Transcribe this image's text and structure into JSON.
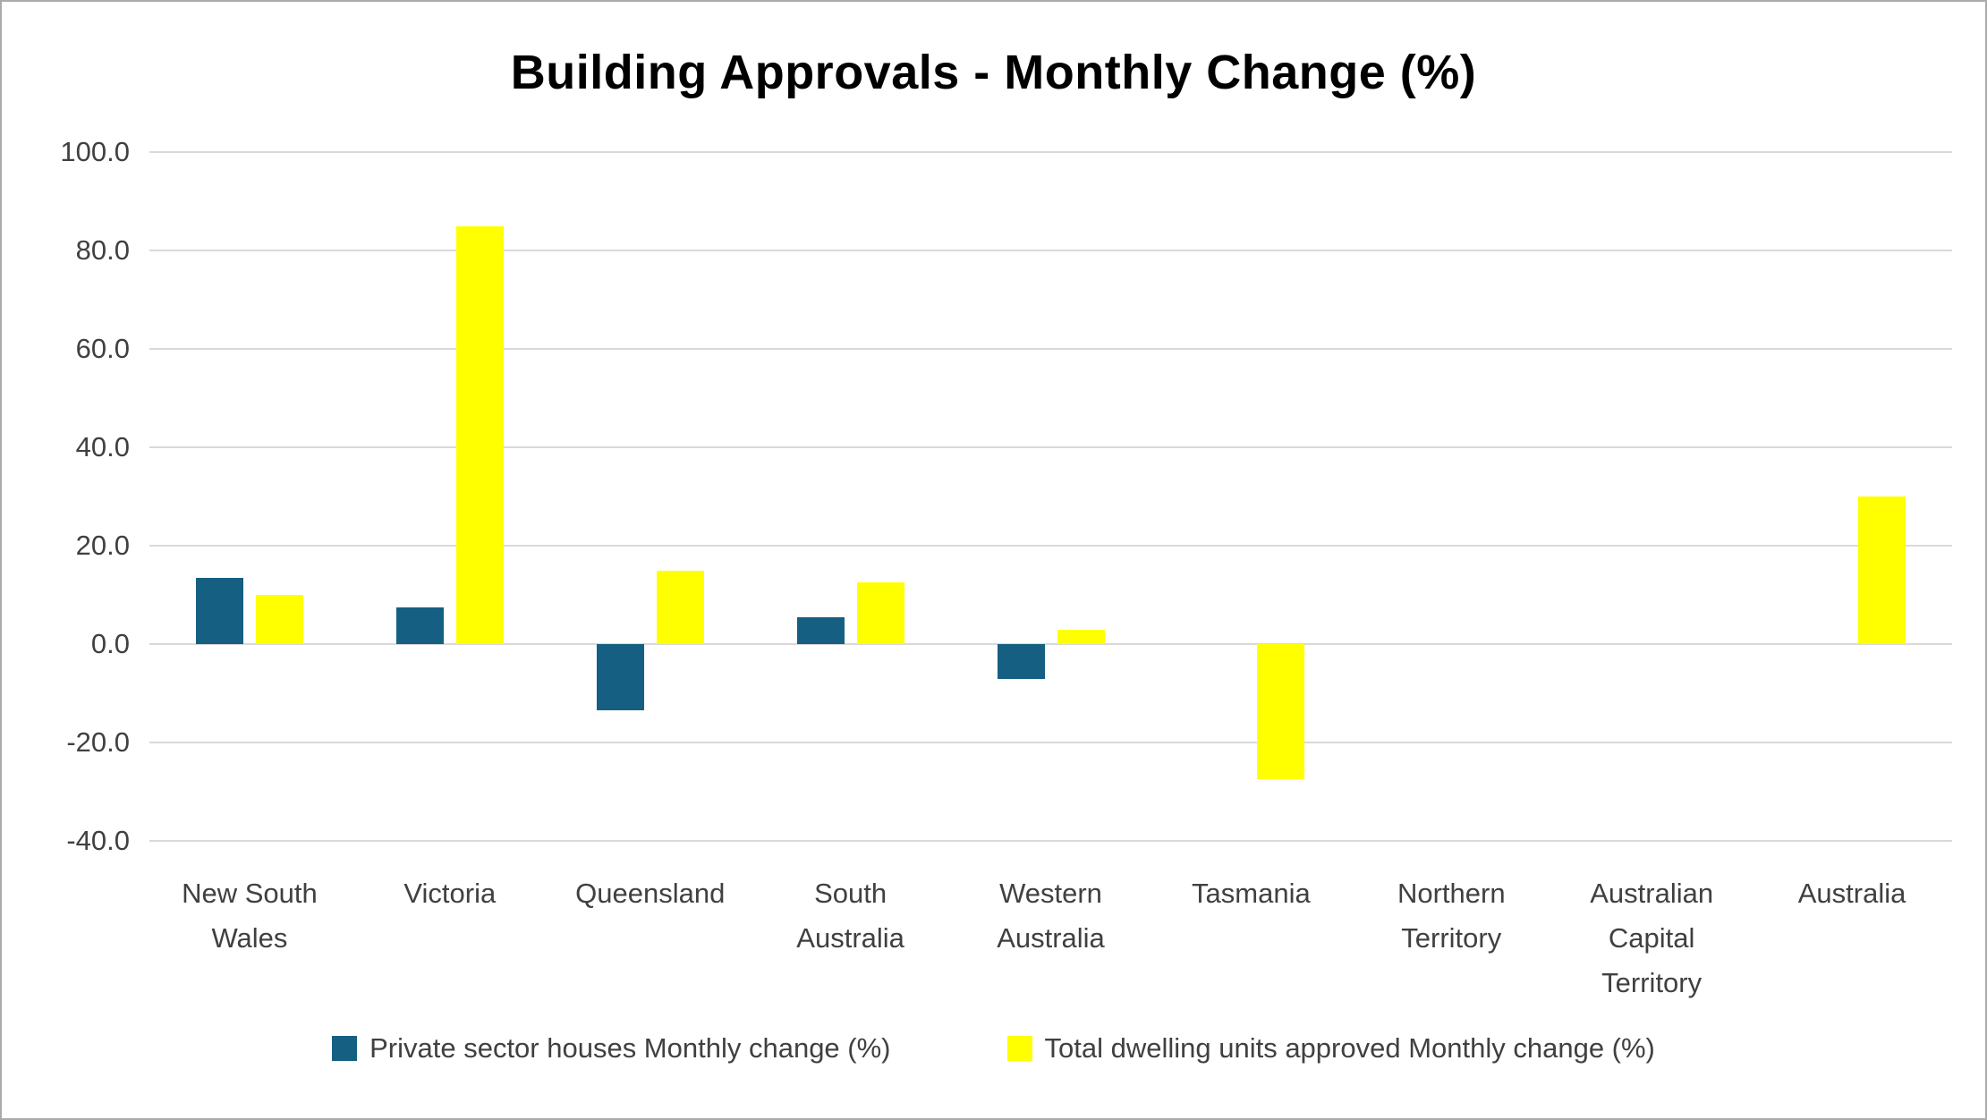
{
  "chart_data": {
    "type": "bar",
    "title": "Building Approvals - Monthly Change (%)",
    "categories": [
      "New South Wales",
      "Victoria",
      "Queensland",
      "South Australia",
      "Western Australia",
      "Tasmania",
      "Northern Territory",
      "Australian Capital Territory",
      "Australia"
    ],
    "series": [
      {
        "name": "Private sector houses Monthly change (%)",
        "color": "#156082",
        "values": [
          13.5,
          7.5,
          -13.5,
          5.5,
          -7.0,
          0,
          0,
          0,
          0
        ]
      },
      {
        "name": "Total dwelling units approved Monthly change (%)",
        "color": "#ffff00",
        "values": [
          10.0,
          85.0,
          15.0,
          12.5,
          3.0,
          -27.5,
          0,
          0,
          30.0
        ]
      }
    ],
    "ylim": [
      -40,
      100
    ],
    "yticks": [
      100,
      80,
      60,
      40,
      20,
      0,
      -20,
      -40
    ],
    "ytick_labels": [
      "100.0",
      "80.0",
      "60.0",
      "40.0",
      "20.0",
      "0.0",
      "-20.0",
      "-40.0"
    ],
    "grid": true,
    "legend_position": "bottom",
    "gridline_color": "#d9d9d9",
    "text_color": "#404040"
  }
}
